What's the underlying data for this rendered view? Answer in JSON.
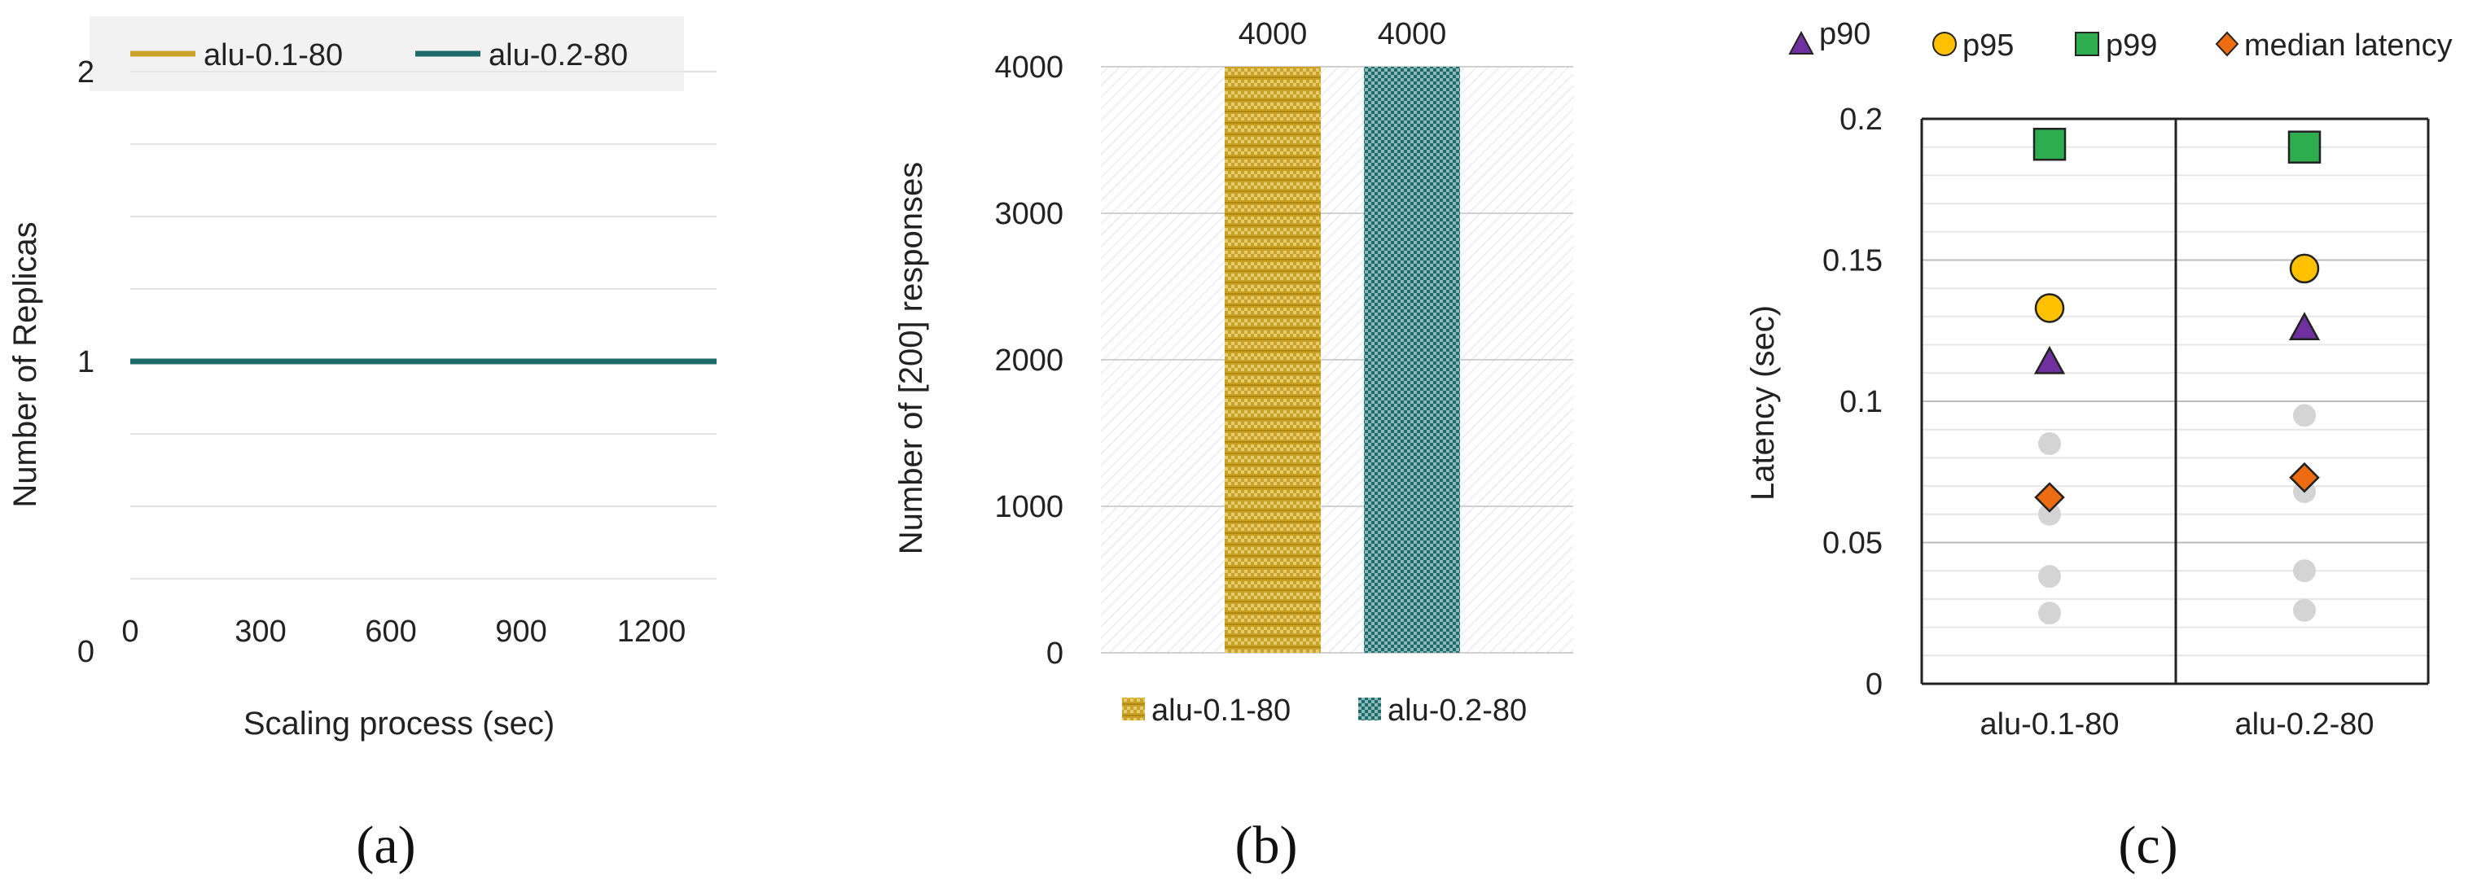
{
  "colors": {
    "alu01": "#C9A227",
    "alu02": "#1F6B6B",
    "p90": "#7030A0",
    "p95": "#FFC000",
    "p99": "#2EAD4F",
    "median": "#ED6C0F",
    "gray_points": "#D4D4D4"
  },
  "chart_data": [
    {
      "panel": "a",
      "type": "line",
      "xlabel": "Scaling process (sec)",
      "ylabel": "Number of Replicas",
      "xlim": [
        0,
        1350
      ],
      "ylim": [
        0,
        2
      ],
      "xticks": [
        "0",
        "300",
        "600",
        "900",
        "1200"
      ],
      "yticks": [
        "0",
        "1",
        "2"
      ],
      "legend_position": "top",
      "series": [
        {
          "name": "alu-0.1-80",
          "color": "#C9A227",
          "x": [
            0,
            1350
          ],
          "y": [
            1,
            1
          ]
        },
        {
          "name": "alu-0.2-80",
          "color": "#1F6B6B",
          "x": [
            0,
            1350
          ],
          "y": [
            1,
            1
          ]
        }
      ],
      "grid": true
    },
    {
      "panel": "b",
      "type": "bar",
      "ylabel": "Number of [200] responses",
      "ylim": [
        0,
        4000
      ],
      "yticks": [
        "0",
        "1000",
        "2000",
        "3000",
        "4000"
      ],
      "categories": [
        "alu-0.1-80",
        "alu-0.2-80"
      ],
      "values": [
        4000,
        4000
      ],
      "data_labels": [
        "4000",
        "4000"
      ],
      "legend_position": "bottom",
      "legend": [
        "alu-0.1-80",
        "alu-0.2-80"
      ],
      "grid": true
    },
    {
      "panel": "c",
      "type": "scatter",
      "ylabel": "Latency (sec)",
      "ylim": [
        0,
        0.2
      ],
      "yticks": [
        "0",
        "0.05",
        "0.1",
        "0.15",
        "0.2"
      ],
      "categories": [
        "alu-0.1-80",
        "alu-0.2-80"
      ],
      "legend_position": "top",
      "series": [
        {
          "name": "p90",
          "marker": "triangle",
          "values": [
            0.114,
            0.126
          ]
        },
        {
          "name": "p95",
          "marker": "circle",
          "values": [
            0.133,
            0.147
          ]
        },
        {
          "name": "p99",
          "marker": "square",
          "values": [
            0.191,
            0.19
          ]
        },
        {
          "name": "median latency",
          "marker": "diamond",
          "values": [
            0.066,
            0.073
          ]
        }
      ],
      "other_points": [
        {
          "category": "alu-0.1-80",
          "values": [
            0.085,
            0.06,
            0.038,
            0.025
          ]
        },
        {
          "category": "alu-0.2-80",
          "values": [
            0.095,
            0.068,
            0.04,
            0.026
          ]
        }
      ],
      "grid": true
    }
  ],
  "panel_labels": [
    "(a)",
    "(b)",
    "(c)"
  ]
}
